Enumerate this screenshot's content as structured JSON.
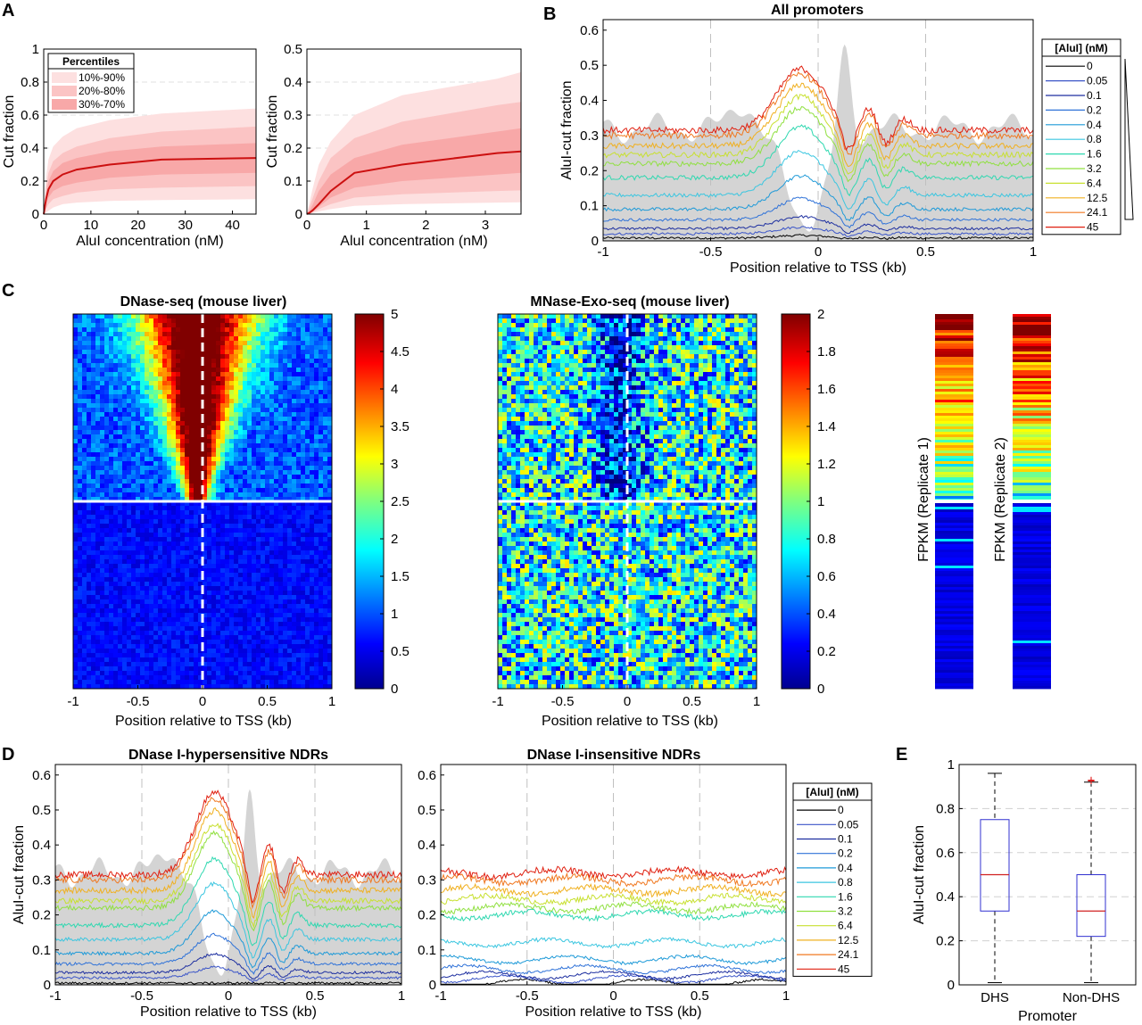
{
  "panel_letters": {
    "a": "A",
    "b": "B",
    "c": "C",
    "d": "D",
    "e": "E"
  },
  "concentrations": [
    "0",
    "0.05",
    "0.1",
    "0.2",
    "0.4",
    "0.8",
    "1.6",
    "3.2",
    "6.4",
    "12.5",
    "24.1",
    "45"
  ],
  "series_colors": [
    "#000000",
    "#3b55c8",
    "#1d2fa0",
    "#2f72d8",
    "#1e9ad8",
    "#3bc6e0",
    "#2fd8b0",
    "#90e040",
    "#c8e030",
    "#f0b020",
    "#f07820",
    "#e02010"
  ],
  "chart_data": [
    {
      "id": "A-left",
      "type": "area",
      "xlabel": "AluI concentration (nM)",
      "ylabel": "Cut fraction",
      "xlim": [
        0,
        45
      ],
      "ylim": [
        0,
        1
      ],
      "xticks": [
        "0",
        "10",
        "20",
        "30",
        "40"
      ],
      "yticks": [
        "0",
        "0.2",
        "0.4",
        "0.6",
        "0.8",
        "1"
      ],
      "legend": {
        "title": "Percentiles",
        "entries": [
          "10%-90%",
          "20%-80%",
          "30%-70%"
        ],
        "position": "top-left"
      },
      "x": [
        0,
        0.5,
        1,
        2,
        4,
        7,
        14,
        25,
        45
      ],
      "median": [
        0,
        0.09,
        0.15,
        0.2,
        0.24,
        0.27,
        0.3,
        0.33,
        0.34
      ],
      "bands": [
        {
          "name": "10%-90%",
          "low": [
            0,
            0.01,
            0.02,
            0.04,
            0.06,
            0.07,
            0.08,
            0.085,
            0.09
          ],
          "high": [
            0,
            0.22,
            0.33,
            0.41,
            0.47,
            0.52,
            0.57,
            0.61,
            0.64
          ]
        },
        {
          "name": "20%-80%",
          "low": [
            0,
            0.03,
            0.06,
            0.09,
            0.11,
            0.13,
            0.15,
            0.16,
            0.17
          ],
          "high": [
            0,
            0.16,
            0.25,
            0.32,
            0.37,
            0.41,
            0.46,
            0.5,
            0.53
          ]
        },
        {
          "name": "30%-70%",
          "low": [
            0,
            0.06,
            0.1,
            0.14,
            0.17,
            0.19,
            0.22,
            0.24,
            0.25
          ],
          "high": [
            0,
            0.12,
            0.2,
            0.26,
            0.31,
            0.34,
            0.38,
            0.41,
            0.43
          ]
        }
      ]
    },
    {
      "id": "A-right",
      "type": "area",
      "xlabel": "AluI concentration (nM)",
      "ylabel": "Cut fraction",
      "xlim": [
        0,
        3.6
      ],
      "ylim": [
        0,
        0.5
      ],
      "xticks": [
        "0",
        "1",
        "2",
        "3"
      ],
      "yticks": [
        "0",
        "0.1",
        "0.2",
        "0.3",
        "0.4",
        "0.5"
      ],
      "x": [
        0,
        0.05,
        0.1,
        0.2,
        0.4,
        0.8,
        1.6,
        3.2,
        3.6
      ],
      "median": [
        0,
        0.005,
        0.012,
        0.03,
        0.07,
        0.125,
        0.15,
        0.185,
        0.19
      ],
      "bands": [
        {
          "name": "10%-90%",
          "low": [
            0,
            0.001,
            0.003,
            0.008,
            0.015,
            0.025,
            0.03,
            0.035,
            0.036
          ],
          "high": [
            0,
            0.04,
            0.08,
            0.15,
            0.22,
            0.3,
            0.36,
            0.41,
            0.43
          ]
        },
        {
          "name": "20%-80%",
          "low": [
            0,
            0.002,
            0.006,
            0.015,
            0.03,
            0.05,
            0.06,
            0.07,
            0.072
          ],
          "high": [
            0,
            0.025,
            0.05,
            0.1,
            0.17,
            0.23,
            0.28,
            0.33,
            0.34
          ]
        },
        {
          "name": "30%-70%",
          "low": [
            0,
            0.003,
            0.009,
            0.022,
            0.05,
            0.08,
            0.1,
            0.12,
            0.125
          ],
          "high": [
            0,
            0.012,
            0.03,
            0.07,
            0.12,
            0.17,
            0.21,
            0.25,
            0.26
          ]
        }
      ]
    },
    {
      "id": "B",
      "type": "line",
      "title": "All promoters",
      "xlabel": "Position relative to TSS (kb)",
      "ylabel": "AluI-cut fraction",
      "xlim": [
        -1,
        1
      ],
      "ylim": [
        0,
        0.63
      ],
      "xticks": [
        "-1",
        "-0.5",
        "0",
        "0.5",
        "1"
      ],
      "yticks": [
        "0",
        "0.1",
        "0.2",
        "0.3",
        "0.4",
        "0.5",
        "0.6"
      ],
      "legend": {
        "title": "[AluI] (nM)",
        "position": "right"
      },
      "series_levels": [
        0.008,
        0.02,
        0.035,
        0.06,
        0.09,
        0.13,
        0.18,
        0.22,
        0.245,
        0.27,
        0.3,
        0.315
      ],
      "peak_gain": [
        0.02,
        0.05,
        0.09,
        0.16,
        0.25,
        0.33,
        0.38,
        0.42,
        0.44,
        0.46,
        0.46,
        0.46
      ]
    },
    {
      "id": "C-dnase",
      "type": "heatmap",
      "title": "DNase-seq (mouse liver)",
      "xlabel": "Position relative to TSS (kb)",
      "xticks": [
        "-1",
        "-0.5",
        "0",
        "0.5",
        "1"
      ],
      "colorbar_ticks": [
        "0",
        "0.5",
        "1",
        "1.5",
        "2",
        "2.5",
        "3",
        "3.5",
        "4",
        "4.5",
        "5"
      ],
      "clim": [
        0,
        5
      ]
    },
    {
      "id": "C-mnase",
      "type": "heatmap",
      "title": "MNase-Exo-seq (mouse liver)",
      "xlabel": "Position relative to TSS (kb)",
      "xticks": [
        "-1",
        "-0.5",
        "0",
        "0.5",
        "1"
      ],
      "colorbar_ticks": [
        "0",
        "0.2",
        "0.4",
        "0.6",
        "0.8",
        "1",
        "1.2",
        "1.4",
        "1.6",
        "1.8",
        "2"
      ],
      "clim": [
        0,
        2
      ]
    },
    {
      "id": "C-fpkm",
      "type": "heatmap",
      "labels": [
        "FPKM (Replicate 1)",
        "FPKM (Replicate 2)"
      ]
    },
    {
      "id": "D-dhs",
      "type": "line",
      "title": "DNase I-hypersensitive NDRs",
      "xlabel": "Position relative to TSS (kb)",
      "ylabel": "AluI-cut fraction",
      "xlim": [
        -1,
        1
      ],
      "ylim": [
        0,
        0.63
      ],
      "xticks": [
        "-1",
        "-0.5",
        "0",
        "0.5",
        "1"
      ],
      "yticks": [
        "0",
        "0.1",
        "0.2",
        "0.3",
        "0.4",
        "0.5",
        "0.6"
      ],
      "series_levels": [
        0.005,
        0.02,
        0.035,
        0.06,
        0.09,
        0.13,
        0.17,
        0.22,
        0.24,
        0.27,
        0.3,
        0.315
      ],
      "peak_gain": [
        0.0,
        0.08,
        0.14,
        0.22,
        0.32,
        0.42,
        0.5,
        0.56,
        0.58,
        0.6,
        0.61,
        0.62
      ]
    },
    {
      "id": "D-nondhs",
      "type": "line",
      "title": "DNase I-insensitive NDRs",
      "xlabel": "Position relative to TSS (kb)",
      "xlim": [
        -1,
        1
      ],
      "ylim": [
        0,
        0.63
      ],
      "xticks": [
        "-1",
        "-0.5",
        "0",
        "0.5",
        "1"
      ],
      "yticks": [
        "0",
        "0.1",
        "0.2",
        "0.3",
        "0.4",
        "0.5",
        "0.6"
      ],
      "legend": {
        "title": "[AluI] (nM)",
        "position": "right"
      },
      "series_levels": [
        0.005,
        0.017,
        0.028,
        0.045,
        0.072,
        0.12,
        0.2,
        0.22,
        0.245,
        0.27,
        0.3,
        0.32
      ]
    },
    {
      "id": "E",
      "type": "box",
      "xlabel": "Promoter",
      "ylabel": "AluI-cut fraction",
      "ylim": [
        0,
        1
      ],
      "yticks": [
        "0",
        "0.2",
        "0.4",
        "0.6",
        "0.8",
        "1"
      ],
      "categories": [
        "DHS",
        "Non-DHS"
      ],
      "boxes": [
        {
          "name": "DHS",
          "min": 0.01,
          "q1": 0.335,
          "median": 0.5,
          "q3": 0.75,
          "max": 0.96
        },
        {
          "name": "Non-DHS",
          "min": 0.01,
          "q1": 0.22,
          "median": 0.335,
          "q3": 0.5,
          "max": 0.92,
          "outliers": [
            0.93,
            0.925
          ]
        }
      ]
    }
  ]
}
